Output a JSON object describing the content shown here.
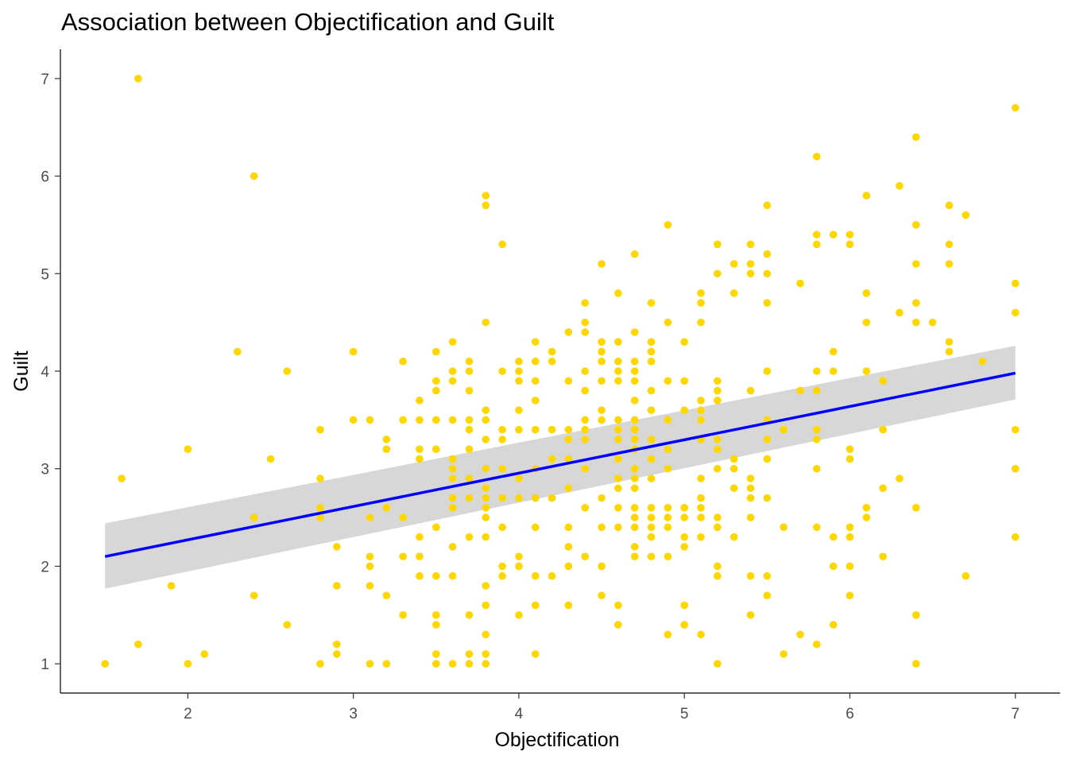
{
  "chart_data": {
    "type": "scatter",
    "title": "Association between Objectification and Guilt",
    "xlabel": "Objectification",
    "ylabel": "Guilt",
    "xlim": [
      1.23,
      7.27
    ],
    "ylim": [
      0.7,
      7.3
    ],
    "xticks": [
      2,
      3,
      4,
      5,
      6,
      7
    ],
    "yticks": [
      1,
      2,
      3,
      4,
      5,
      6,
      7
    ],
    "grid": false,
    "colors": {
      "points": "#FFD700",
      "fit_line": "#0000FF",
      "ci_band": "#D3D3D3",
      "axis": "#000000"
    },
    "fit": {
      "type": "linear",
      "x": [
        1.5,
        7.0
      ],
      "y": [
        2.1,
        3.98
      ],
      "ci_lower": [
        1.77,
        3.71
      ],
      "ci_upper": [
        2.44,
        4.26
      ]
    },
    "points": [
      [
        1.5,
        1.0
      ],
      [
        1.6,
        2.9
      ],
      [
        1.7,
        7.0
      ],
      [
        1.7,
        1.2
      ],
      [
        1.9,
        1.8
      ],
      [
        2.0,
        3.2
      ],
      [
        2.0,
        1.0
      ],
      [
        2.1,
        1.1
      ],
      [
        2.3,
        4.2
      ],
      [
        2.4,
        6.0
      ],
      [
        2.4,
        2.5
      ],
      [
        2.4,
        1.7
      ],
      [
        2.5,
        3.1
      ],
      [
        2.6,
        4.0
      ],
      [
        2.6,
        1.4
      ],
      [
        2.8,
        3.4
      ],
      [
        2.8,
        2.9
      ],
      [
        2.8,
        2.6
      ],
      [
        2.8,
        2.5
      ],
      [
        2.8,
        1.0
      ],
      [
        2.9,
        2.2
      ],
      [
        2.9,
        1.8
      ],
      [
        2.9,
        1.2
      ],
      [
        2.9,
        1.1
      ],
      [
        3.0,
        4.2
      ],
      [
        3.0,
        3.5
      ],
      [
        3.1,
        3.5
      ],
      [
        3.1,
        2.5
      ],
      [
        3.1,
        2.1
      ],
      [
        3.1,
        2.0
      ],
      [
        3.1,
        1.8
      ],
      [
        3.1,
        1.0
      ],
      [
        3.2,
        3.3
      ],
      [
        3.2,
        3.2
      ],
      [
        3.2,
        2.6
      ],
      [
        3.2,
        1.7
      ],
      [
        3.2,
        1.0
      ],
      [
        3.3,
        4.1
      ],
      [
        3.3,
        3.5
      ],
      [
        3.3,
        2.5
      ],
      [
        3.3,
        2.1
      ],
      [
        3.3,
        1.5
      ],
      [
        3.4,
        3.7
      ],
      [
        3.4,
        3.5
      ],
      [
        3.4,
        3.2
      ],
      [
        3.4,
        3.1
      ],
      [
        3.4,
        2.3
      ],
      [
        3.4,
        2.1
      ],
      [
        3.4,
        1.9
      ],
      [
        3.5,
        4.2
      ],
      [
        3.5,
        3.9
      ],
      [
        3.5,
        3.8
      ],
      [
        3.5,
        3.5
      ],
      [
        3.5,
        3.2
      ],
      [
        3.5,
        2.4
      ],
      [
        3.5,
        1.9
      ],
      [
        3.5,
        1.5
      ],
      [
        3.5,
        1.4
      ],
      [
        3.5,
        1.1
      ],
      [
        3.5,
        1.0
      ],
      [
        3.6,
        4.3
      ],
      [
        3.6,
        4.0
      ],
      [
        3.6,
        3.9
      ],
      [
        3.6,
        3.5
      ],
      [
        3.6,
        3.1
      ],
      [
        3.6,
        3.0
      ],
      [
        3.6,
        2.9
      ],
      [
        3.6,
        2.7
      ],
      [
        3.6,
        2.6
      ],
      [
        3.6,
        2.2
      ],
      [
        3.6,
        1.9
      ],
      [
        3.6,
        1.0
      ],
      [
        3.7,
        4.1
      ],
      [
        3.7,
        4.0
      ],
      [
        3.7,
        3.8
      ],
      [
        3.7,
        3.5
      ],
      [
        3.7,
        3.4
      ],
      [
        3.7,
        3.2
      ],
      [
        3.7,
        2.9
      ],
      [
        3.7,
        2.7
      ],
      [
        3.7,
        2.3
      ],
      [
        3.7,
        1.5
      ],
      [
        3.7,
        1.1
      ],
      [
        3.7,
        1.0
      ],
      [
        3.8,
        5.8
      ],
      [
        3.8,
        5.7
      ],
      [
        3.8,
        4.5
      ],
      [
        3.8,
        3.6
      ],
      [
        3.8,
        3.5
      ],
      [
        3.8,
        3.3
      ],
      [
        3.8,
        3.0
      ],
      [
        3.8,
        2.8
      ],
      [
        3.8,
        2.7
      ],
      [
        3.8,
        2.6
      ],
      [
        3.8,
        2.5
      ],
      [
        3.8,
        2.3
      ],
      [
        3.8,
        1.8
      ],
      [
        3.8,
        1.6
      ],
      [
        3.8,
        1.3
      ],
      [
        3.8,
        1.1
      ],
      [
        3.8,
        1.0
      ],
      [
        3.9,
        5.3
      ],
      [
        3.9,
        4.0
      ],
      [
        3.9,
        3.4
      ],
      [
        3.9,
        3.3
      ],
      [
        3.9,
        3.0
      ],
      [
        3.9,
        2.7
      ],
      [
        3.9,
        2.4
      ],
      [
        3.9,
        2.0
      ],
      [
        3.9,
        1.9
      ],
      [
        4.0,
        4.1
      ],
      [
        4.0,
        4.0
      ],
      [
        4.0,
        3.9
      ],
      [
        4.0,
        3.6
      ],
      [
        4.0,
        3.4
      ],
      [
        4.0,
        2.9
      ],
      [
        4.0,
        2.7
      ],
      [
        4.0,
        2.1
      ],
      [
        4.0,
        2.0
      ],
      [
        4.0,
        1.5
      ],
      [
        4.1,
        4.3
      ],
      [
        4.1,
        4.1
      ],
      [
        4.1,
        3.9
      ],
      [
        4.1,
        3.7
      ],
      [
        4.1,
        3.4
      ],
      [
        4.1,
        3.0
      ],
      [
        4.1,
        2.7
      ],
      [
        4.1,
        2.4
      ],
      [
        4.1,
        1.9
      ],
      [
        4.1,
        1.6
      ],
      [
        4.1,
        1.1
      ],
      [
        4.2,
        4.2
      ],
      [
        4.2,
        4.1
      ],
      [
        4.2,
        3.4
      ],
      [
        4.2,
        3.1
      ],
      [
        4.2,
        2.7
      ],
      [
        4.2,
        1.9
      ],
      [
        4.3,
        4.4
      ],
      [
        4.3,
        3.9
      ],
      [
        4.3,
        3.4
      ],
      [
        4.3,
        3.3
      ],
      [
        4.3,
        3.1
      ],
      [
        4.3,
        2.8
      ],
      [
        4.3,
        2.4
      ],
      [
        4.3,
        2.2
      ],
      [
        4.3,
        2.0
      ],
      [
        4.3,
        1.6
      ],
      [
        4.4,
        4.7
      ],
      [
        4.4,
        4.5
      ],
      [
        4.4,
        4.4
      ],
      [
        4.4,
        4.0
      ],
      [
        4.4,
        3.8
      ],
      [
        4.4,
        3.5
      ],
      [
        4.4,
        3.4
      ],
      [
        4.4,
        3.3
      ],
      [
        4.4,
        3.0
      ],
      [
        4.4,
        2.6
      ],
      [
        4.4,
        2.1
      ],
      [
        4.5,
        5.1
      ],
      [
        4.5,
        4.3
      ],
      [
        4.5,
        4.2
      ],
      [
        4.5,
        4.1
      ],
      [
        4.5,
        3.9
      ],
      [
        4.5,
        3.6
      ],
      [
        4.5,
        3.5
      ],
      [
        4.5,
        2.7
      ],
      [
        4.5,
        2.4
      ],
      [
        4.5,
        2.0
      ],
      [
        4.5,
        1.7
      ],
      [
        4.6,
        4.8
      ],
      [
        4.6,
        4.3
      ],
      [
        4.6,
        4.1
      ],
      [
        4.6,
        4.0
      ],
      [
        4.6,
        3.9
      ],
      [
        4.6,
        3.5
      ],
      [
        4.6,
        3.4
      ],
      [
        4.6,
        3.3
      ],
      [
        4.6,
        3.1
      ],
      [
        4.6,
        2.9
      ],
      [
        4.6,
        2.8
      ],
      [
        4.6,
        2.6
      ],
      [
        4.6,
        2.4
      ],
      [
        4.6,
        1.6
      ],
      [
        4.6,
        1.4
      ],
      [
        4.7,
        5.2
      ],
      [
        4.7,
        4.4
      ],
      [
        4.7,
        4.1
      ],
      [
        4.7,
        4.0
      ],
      [
        4.7,
        3.9
      ],
      [
        4.7,
        3.7
      ],
      [
        4.7,
        3.5
      ],
      [
        4.7,
        3.4
      ],
      [
        4.7,
        3.3
      ],
      [
        4.7,
        3.2
      ],
      [
        4.7,
        3.0
      ],
      [
        4.7,
        2.9
      ],
      [
        4.7,
        2.8
      ],
      [
        4.7,
        2.6
      ],
      [
        4.7,
        2.5
      ],
      [
        4.7,
        2.4
      ],
      [
        4.7,
        2.2
      ],
      [
        4.7,
        2.1
      ],
      [
        4.8,
        4.7
      ],
      [
        4.8,
        4.3
      ],
      [
        4.8,
        4.2
      ],
      [
        4.8,
        4.1
      ],
      [
        4.8,
        3.8
      ],
      [
        4.8,
        3.6
      ],
      [
        4.8,
        3.3
      ],
      [
        4.8,
        3.1
      ],
      [
        4.8,
        2.9
      ],
      [
        4.8,
        2.6
      ],
      [
        4.8,
        2.5
      ],
      [
        4.8,
        2.4
      ],
      [
        4.8,
        2.3
      ],
      [
        4.8,
        2.1
      ],
      [
        4.9,
        5.5
      ],
      [
        4.9,
        4.5
      ],
      [
        4.9,
        3.9
      ],
      [
        4.9,
        3.5
      ],
      [
        4.9,
        3.2
      ],
      [
        4.9,
        3.0
      ],
      [
        4.9,
        2.6
      ],
      [
        4.9,
        2.5
      ],
      [
        4.9,
        2.4
      ],
      [
        4.9,
        2.1
      ],
      [
        4.9,
        1.3
      ],
      [
        5.0,
        4.3
      ],
      [
        5.0,
        3.9
      ],
      [
        5.0,
        3.6
      ],
      [
        5.0,
        2.6
      ],
      [
        5.0,
        2.5
      ],
      [
        5.0,
        2.3
      ],
      [
        5.0,
        2.2
      ],
      [
        5.0,
        1.6
      ],
      [
        5.0,
        1.4
      ],
      [
        5.1,
        4.8
      ],
      [
        5.1,
        4.7
      ],
      [
        5.1,
        4.5
      ],
      [
        5.1,
        3.7
      ],
      [
        5.1,
        3.6
      ],
      [
        5.1,
        3.5
      ],
      [
        5.1,
        3.3
      ],
      [
        5.1,
        2.9
      ],
      [
        5.1,
        2.7
      ],
      [
        5.1,
        2.6
      ],
      [
        5.1,
        2.5
      ],
      [
        5.1,
        2.3
      ],
      [
        5.1,
        1.3
      ],
      [
        5.2,
        5.3
      ],
      [
        5.2,
        5.0
      ],
      [
        5.2,
        3.9
      ],
      [
        5.2,
        3.8
      ],
      [
        5.2,
        3.7
      ],
      [
        5.2,
        3.3
      ],
      [
        5.2,
        3.2
      ],
      [
        5.2,
        3.0
      ],
      [
        5.2,
        2.5
      ],
      [
        5.2,
        2.4
      ],
      [
        5.2,
        2.0
      ],
      [
        5.2,
        1.9
      ],
      [
        5.2,
        1.0
      ],
      [
        5.3,
        5.1
      ],
      [
        5.3,
        4.8
      ],
      [
        5.3,
        3.1
      ],
      [
        5.3,
        3.0
      ],
      [
        5.3,
        2.8
      ],
      [
        5.3,
        2.3
      ],
      [
        5.4,
        5.3
      ],
      [
        5.4,
        5.1
      ],
      [
        5.4,
        5.0
      ],
      [
        5.4,
        3.8
      ],
      [
        5.4,
        2.9
      ],
      [
        5.4,
        2.8
      ],
      [
        5.4,
        2.7
      ],
      [
        5.4,
        2.5
      ],
      [
        5.4,
        1.9
      ],
      [
        5.4,
        1.5
      ],
      [
        5.5,
        5.7
      ],
      [
        5.5,
        5.2
      ],
      [
        5.5,
        5.0
      ],
      [
        5.5,
        4.7
      ],
      [
        5.5,
        4.0
      ],
      [
        5.5,
        3.5
      ],
      [
        5.5,
        3.3
      ],
      [
        5.5,
        3.1
      ],
      [
        5.5,
        2.7
      ],
      [
        5.5,
        1.9
      ],
      [
        5.5,
        1.7
      ],
      [
        5.6,
        3.4
      ],
      [
        5.6,
        2.4
      ],
      [
        5.6,
        1.1
      ],
      [
        5.7,
        4.9
      ],
      [
        5.7,
        3.8
      ],
      [
        5.7,
        1.3
      ],
      [
        5.8,
        6.2
      ],
      [
        5.8,
        5.4
      ],
      [
        5.8,
        5.3
      ],
      [
        5.8,
        4.0
      ],
      [
        5.8,
        3.8
      ],
      [
        5.8,
        3.4
      ],
      [
        5.8,
        3.3
      ],
      [
        5.8,
        3.0
      ],
      [
        5.8,
        2.4
      ],
      [
        5.8,
        1.2
      ],
      [
        5.9,
        5.4
      ],
      [
        5.9,
        4.2
      ],
      [
        5.9,
        4.0
      ],
      [
        5.9,
        2.3
      ],
      [
        5.9,
        2.0
      ],
      [
        5.9,
        1.4
      ],
      [
        6.0,
        5.4
      ],
      [
        6.0,
        5.3
      ],
      [
        6.0,
        3.2
      ],
      [
        6.0,
        3.1
      ],
      [
        6.0,
        2.4
      ],
      [
        6.0,
        2.3
      ],
      [
        6.0,
        2.0
      ],
      [
        6.0,
        1.7
      ],
      [
        6.1,
        5.8
      ],
      [
        6.1,
        4.8
      ],
      [
        6.1,
        4.5
      ],
      [
        6.1,
        4.0
      ],
      [
        6.1,
        2.6
      ],
      [
        6.1,
        2.5
      ],
      [
        6.2,
        3.9
      ],
      [
        6.2,
        3.4
      ],
      [
        6.2,
        2.8
      ],
      [
        6.2,
        2.1
      ],
      [
        6.3,
        5.9
      ],
      [
        6.3,
        4.6
      ],
      [
        6.3,
        2.9
      ],
      [
        6.4,
        6.4
      ],
      [
        6.4,
        5.5
      ],
      [
        6.4,
        5.1
      ],
      [
        6.4,
        4.7
      ],
      [
        6.4,
        4.5
      ],
      [
        6.4,
        2.6
      ],
      [
        6.4,
        1.5
      ],
      [
        6.4,
        1.0
      ],
      [
        6.5,
        4.5
      ],
      [
        6.6,
        5.7
      ],
      [
        6.6,
        5.3
      ],
      [
        6.6,
        5.1
      ],
      [
        6.6,
        4.3
      ],
      [
        6.6,
        4.2
      ],
      [
        6.7,
        5.6
      ],
      [
        6.7,
        1.9
      ],
      [
        6.8,
        4.1
      ],
      [
        7.0,
        6.7
      ],
      [
        7.0,
        4.9
      ],
      [
        7.0,
        4.6
      ],
      [
        7.0,
        3.4
      ],
      [
        7.0,
        3.0
      ],
      [
        7.0,
        2.3
      ]
    ]
  }
}
